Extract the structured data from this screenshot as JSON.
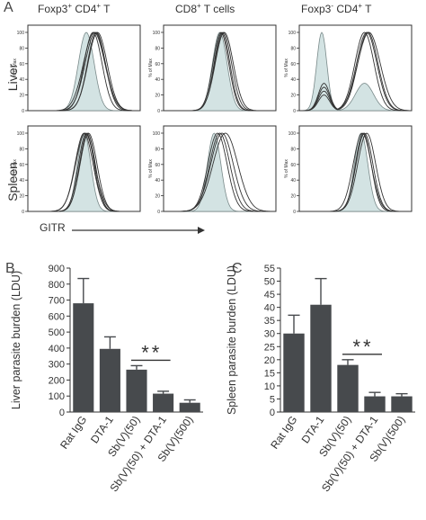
{
  "panel_letters": {
    "a": "A",
    "b": "B",
    "c": "C"
  },
  "histograms": {
    "columns": [
      {
        "pre": "Foxp3",
        "sup": "+",
        "post": " CD4",
        "sup2": "+",
        "post2": " T"
      },
      {
        "pre": "CD8",
        "sup": "+",
        "post": " T cells",
        "sup2": "",
        "post2": ""
      },
      {
        "pre": "Foxp3",
        "sup": "-",
        "post": " CD4",
        "sup2": "+",
        "post2": " T"
      }
    ],
    "rows": [
      "Liver",
      "Spleen"
    ],
    "ylabel": "% of Max",
    "yticks": [
      0,
      20,
      40,
      60,
      80,
      100
    ],
    "xlabel": "GITR",
    "fill_color": "#d3e3e3",
    "line_color": "#333333"
  },
  "chart_data": [
    {
      "type": "bar",
      "categories": [
        "Rat IgG",
        "DTA-1",
        "Sb(V)(50)",
        "Sb(V)(50) + DTA-1",
        "Sb(V)(500)"
      ],
      "values": [
        680,
        395,
        265,
        115,
        58
      ],
      "errors": [
        155,
        75,
        25,
        15,
        18
      ],
      "ylabel": "Liver parasite burden (LDU)",
      "ylim": [
        0,
        900
      ],
      "yticks": [
        0,
        100,
        200,
        300,
        400,
        500,
        600,
        700,
        800,
        900
      ],
      "bar_color": "#474a4d",
      "significance": {
        "label": "**",
        "from": 2,
        "to": 3
      }
    },
    {
      "type": "bar",
      "categories": [
        "Rat IgG",
        "DTA-1",
        "Sb(V)(50)",
        "Sb(V)(50) + DTA-1",
        "Sb(V)(500)"
      ],
      "values": [
        30,
        41,
        18,
        6,
        6
      ],
      "errors": [
        7,
        10,
        2,
        1.5,
        1
      ],
      "ylabel": "Spleen parasite burden (LDU)",
      "ylim": [
        0,
        55
      ],
      "yticks": [
        0,
        5,
        10,
        15,
        20,
        25,
        30,
        35,
        40,
        45,
        50,
        55
      ],
      "bar_color": "#474a4d",
      "significance": {
        "label": "**",
        "from": 2,
        "to": 3
      }
    }
  ]
}
